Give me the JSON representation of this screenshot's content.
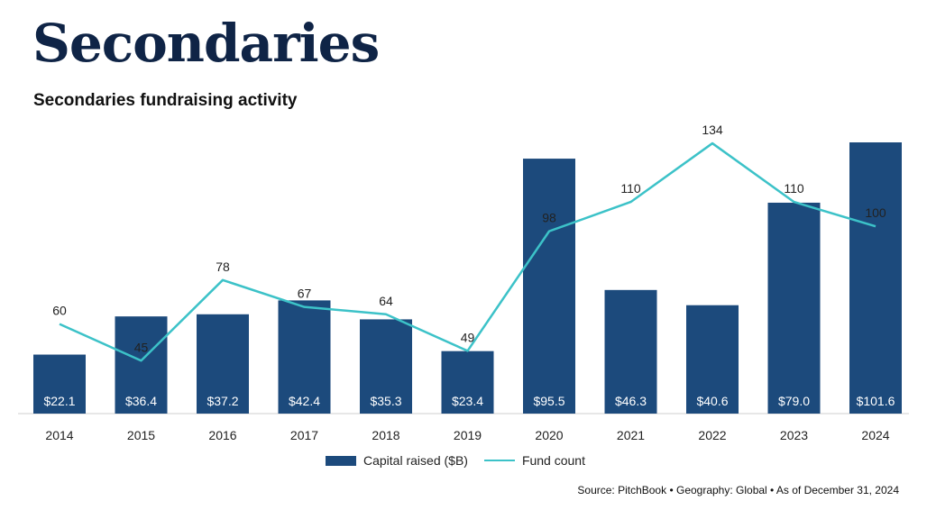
{
  "header": {
    "title": "Secondaries",
    "subtitle": "Secondaries fundraising activity"
  },
  "colors": {
    "bar": "#1c4a7c",
    "line": "#3cc2c8",
    "title": "#0f2446"
  },
  "chart_data": {
    "type": "bar",
    "title": "Secondaries fundraising activity",
    "categories": [
      "2014",
      "2015",
      "2016",
      "2017",
      "2018",
      "2019",
      "2020",
      "2021",
      "2022",
      "2023",
      "2024"
    ],
    "series": [
      {
        "name": "Capital raised ($B)",
        "type": "bar",
        "values": [
          22.1,
          36.4,
          37.2,
          42.4,
          35.3,
          23.4,
          95.5,
          46.3,
          40.6,
          79.0,
          101.6
        ],
        "labels": [
          "$22.1",
          "$36.4",
          "$37.2",
          "$42.4",
          "$35.3",
          "$23.4",
          "$95.5",
          "$46.3",
          "$40.6",
          "$79.0",
          "$101.6"
        ]
      },
      {
        "name": "Fund count",
        "type": "line",
        "values": [
          60,
          45,
          78,
          67,
          64,
          49,
          98,
          110,
          134,
          110,
          100
        ],
        "labels": [
          "60",
          "45",
          "78",
          "67",
          "64",
          "49",
          "98",
          "110",
          "134",
          "110",
          "100"
        ]
      }
    ],
    "legend_position": "bottom-center",
    "grid": false
  },
  "source": "Source: PitchBook  •  Geography: Global  •  As of December 31, 2024"
}
